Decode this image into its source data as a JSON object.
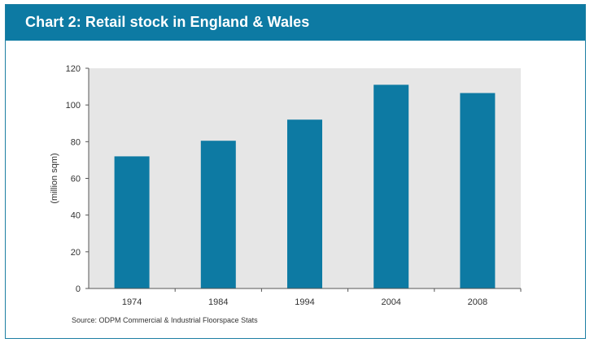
{
  "header": {
    "title": "Chart 2: Retail stock in England & Wales"
  },
  "source": "Source: ODPM Commercial & Industrial Floorspace Stats",
  "colors": {
    "header_bg": "#0d7aa3",
    "bar": "#0d7aa3",
    "plot_bg": "#e6e6e6",
    "frame": "#1d7fa3"
  },
  "chart_data": {
    "type": "bar",
    "title": "",
    "xlabel": "",
    "ylabel": "(million sqm)",
    "categories": [
      "1974",
      "1984",
      "1994",
      "2004",
      "2008"
    ],
    "values": [
      72,
      80.5,
      92,
      111,
      106.5
    ],
    "ylim": [
      0,
      120
    ],
    "yticks": [
      0,
      20,
      40,
      60,
      80,
      100,
      120
    ],
    "grid": false
  }
}
